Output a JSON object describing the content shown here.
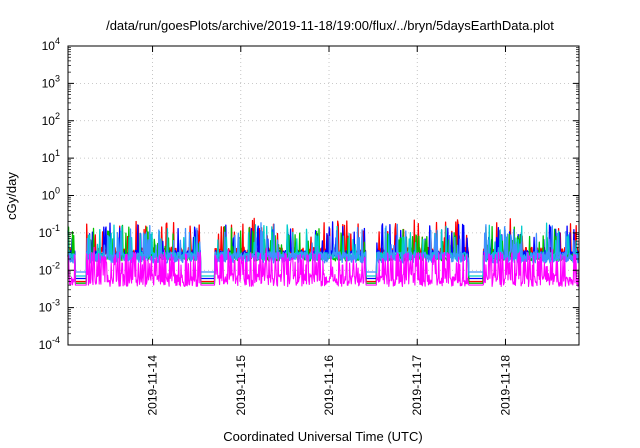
{
  "chart_data": {
    "type": "line",
    "title": "/data/run/goesPlots/archive/2019-11-18/19:00/flux/../bryn/5daysEarthData.plot",
    "xlabel": "Coordinated Universal Time (UTC)",
    "ylabel": "cGy/day",
    "yscale": "log",
    "ylim": [
      0.0001,
      10000
    ],
    "xlim": [
      "2019-11-13T01:00",
      "2019-11-18T20:00"
    ],
    "grid": true,
    "legend": "none",
    "y_ticks": [
      {
        "base": "10",
        "exp": "-4",
        "value": 0.0001
      },
      {
        "base": "10",
        "exp": "-3",
        "value": 0.001
      },
      {
        "base": "10",
        "exp": "-2",
        "value": 0.01
      },
      {
        "base": "10",
        "exp": "-1",
        "value": 0.1
      },
      {
        "base": "10",
        "exp": "0",
        "value": 1
      },
      {
        "base": "10",
        "exp": "1",
        "value": 10
      },
      {
        "base": "10",
        "exp": "2",
        "value": 100
      },
      {
        "base": "10",
        "exp": "3",
        "value": 1000
      },
      {
        "base": "10",
        "exp": "4",
        "value": 10000
      }
    ],
    "x_ticks": [
      {
        "label": "2019-11-14",
        "date": "2019-11-14T00:00"
      },
      {
        "label": "2019-11-15",
        "date": "2019-11-15T00:00"
      },
      {
        "label": "2019-11-16",
        "date": "2019-11-16T00:00"
      },
      {
        "label": "2019-11-17",
        "date": "2019-11-17T00:00"
      },
      {
        "label": "2019-11-18",
        "date": "2019-11-18T00:00"
      }
    ],
    "series": [
      {
        "color": "#ff0000",
        "base": 0.032,
        "spread": 0.22,
        "dip": 0.005
      },
      {
        "color": "#0000ff",
        "base": 0.027,
        "spread": 0.2,
        "dip": 0.006
      },
      {
        "color": "#00c000",
        "base": 0.022,
        "spread": 0.18,
        "dip": 0.0045
      },
      {
        "color": "#00cccc",
        "base": 0.024,
        "spread": 0.2,
        "dip": 0.007
      },
      {
        "color": "#4090ff",
        "base": 0.022,
        "spread": 0.3,
        "dip": 0.009
      },
      {
        "color": "#ff00ff",
        "base": 0.0055,
        "spread": 0.35,
        "dip": 0.004
      }
    ],
    "gaps": [
      {
        "start": "2019-11-13T03:00",
        "end": "2019-11-13T06:00"
      },
      {
        "start": "2019-11-14T13:00",
        "end": "2019-11-14T17:00"
      },
      {
        "start": "2019-11-16T10:00",
        "end": "2019-11-16T13:00"
      },
      {
        "start": "2019-11-17T14:00",
        "end": "2019-11-17T18:00"
      }
    ]
  }
}
